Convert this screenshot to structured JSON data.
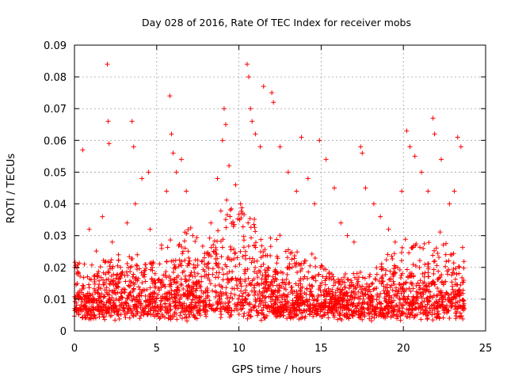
{
  "chart_data": {
    "type": "scatter",
    "title": "Day 028 of 2016, Rate Of TEC Index for receiver mobs",
    "xlabel": "GPS time / hours",
    "ylabel": "ROTI / TECUs",
    "xlim": [
      0,
      25
    ],
    "ylim": [
      0,
      0.09
    ],
    "xticks": [
      "0",
      "5",
      "10",
      "15",
      "20",
      "25"
    ],
    "yticks": [
      "0",
      "0.01",
      "0.02",
      "0.03",
      "0.04",
      "0.05",
      "0.06",
      "0.07",
      "0.08",
      "0.09"
    ],
    "grid": true,
    "marker": "+",
    "color": "#ff0000",
    "series": [
      {
        "x": [
          0.2,
          0.5,
          0.9,
          1.4,
          1.7,
          2.0,
          2.05,
          2.1,
          2.3,
          2.8,
          3.2,
          3.5,
          3.6,
          3.7,
          4.1,
          4.5,
          4.6,
          4.9,
          5.3,
          5.6,
          5.8,
          5.9,
          6.0,
          6.2,
          6.5,
          6.8,
          7.2,
          7.8,
          8.3,
          8.7,
          9.0,
          9.1,
          9.2,
          9.4,
          9.8,
          10.1,
          10.5,
          10.6,
          10.7,
          10.8,
          11.0,
          11.3,
          11.5,
          12.0,
          12.1,
          12.5,
          13.0,
          13.5,
          13.8,
          14.2,
          14.6,
          14.9,
          15.3,
          15.8,
          16.2,
          16.6,
          17.0,
          17.4,
          17.5,
          17.7,
          18.2,
          18.6,
          19.1,
          19.5,
          19.9,
          20.2,
          20.4,
          20.7,
          21.1,
          21.5,
          21.8,
          21.9,
          22.3,
          22.8,
          23.1,
          23.3,
          23.5
        ],
        "y": [
          0.012,
          0.057,
          0.032,
          0.018,
          0.036,
          0.084,
          0.066,
          0.059,
          0.028,
          0.02,
          0.034,
          0.066,
          0.058,
          0.04,
          0.048,
          0.05,
          0.032,
          0.018,
          0.026,
          0.044,
          0.074,
          0.062,
          0.056,
          0.05,
          0.054,
          0.044,
          0.03,
          0.022,
          0.034,
          0.048,
          0.06,
          0.07,
          0.065,
          0.052,
          0.046,
          0.04,
          0.084,
          0.08,
          0.07,
          0.066,
          0.062,
          0.058,
          0.077,
          0.075,
          0.072,
          0.058,
          0.05,
          0.044,
          0.061,
          0.048,
          0.04,
          0.06,
          0.054,
          0.045,
          0.034,
          0.03,
          0.028,
          0.058,
          0.056,
          0.045,
          0.04,
          0.036,
          0.032,
          0.028,
          0.044,
          0.063,
          0.058,
          0.055,
          0.05,
          0.044,
          0.067,
          0.062,
          0.054,
          0.04,
          0.044,
          0.061,
          0.058
        ]
      }
    ]
  }
}
